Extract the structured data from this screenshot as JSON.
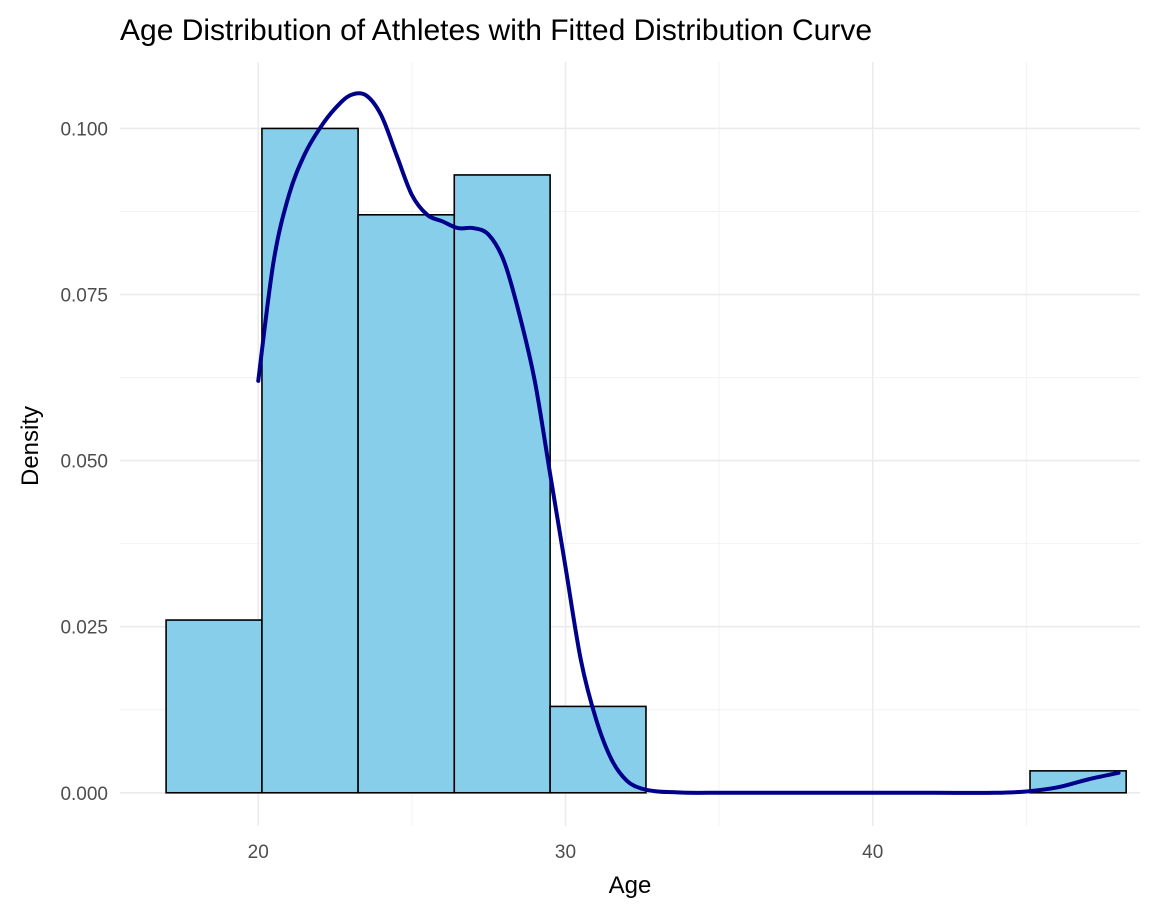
{
  "chart_data": {
    "type": "bar",
    "title": "Age Distribution of Athletes with Fitted Distribution Curve",
    "xlabel": "Age",
    "ylabel": "Density",
    "xlim": [
      15.5,
      48.7
    ],
    "ylim": [
      -0.005,
      0.11
    ],
    "x_ticks": [
      20,
      30,
      40
    ],
    "x_tick_labels": [
      "20",
      "30",
      "40"
    ],
    "y_ticks": [
      0.0,
      0.025,
      0.05,
      0.075,
      0.1
    ],
    "y_tick_labels": [
      "0.000",
      "0.025",
      "0.050",
      "0.075",
      "0.100"
    ],
    "grid": true,
    "legend": "none",
    "series": [
      {
        "type": "histogram",
        "fill": "#87CEEB",
        "outline": "#000000",
        "bins": [
          {
            "x0": 17.0,
            "x1": 20.12,
            "density": 0.026
          },
          {
            "x0": 20.12,
            "x1": 23.25,
            "density": 0.1
          },
          {
            "x0": 23.25,
            "x1": 26.38,
            "density": 0.087
          },
          {
            "x0": 26.38,
            "x1": 29.5,
            "density": 0.093
          },
          {
            "x0": 29.5,
            "x1": 32.62,
            "density": 0.013
          },
          {
            "x0": 32.62,
            "x1": 35.75,
            "density": 0.0
          },
          {
            "x0": 35.75,
            "x1": 38.88,
            "density": 0.0
          },
          {
            "x0": 38.88,
            "x1": 42.0,
            "density": 0.0
          },
          {
            "x0": 42.0,
            "x1": 45.12,
            "density": 0.0
          },
          {
            "x0": 45.12,
            "x1": 48.25,
            "density": 0.0033
          }
        ]
      },
      {
        "type": "line",
        "color": "#00008B",
        "x": [
          20.0,
          20.5,
          21.0,
          21.5,
          22.0,
          22.5,
          23.0,
          23.5,
          24.0,
          24.5,
          25.0,
          25.5,
          26.0,
          26.5,
          27.0,
          27.5,
          28.0,
          28.5,
          29.0,
          29.5,
          30.0,
          30.5,
          31.0,
          31.5,
          32.0,
          32.5,
          33.0,
          33.5,
          34.0,
          35.0,
          36.0,
          38.0,
          40.0,
          42.0,
          44.0,
          45.0,
          46.0,
          47.0,
          48.0
        ],
        "y": [
          0.062,
          0.08,
          0.09,
          0.096,
          0.1,
          0.103,
          0.105,
          0.105,
          0.102,
          0.096,
          0.09,
          0.087,
          0.086,
          0.085,
          0.085,
          0.084,
          0.08,
          0.072,
          0.062,
          0.048,
          0.034,
          0.02,
          0.011,
          0.005,
          0.0018,
          0.0006,
          0.0002,
          0.0001,
          0.0,
          0.0,
          0.0,
          0.0,
          0.0,
          0.0,
          0.0,
          0.0002,
          0.0008,
          0.002,
          0.003
        ]
      }
    ]
  }
}
